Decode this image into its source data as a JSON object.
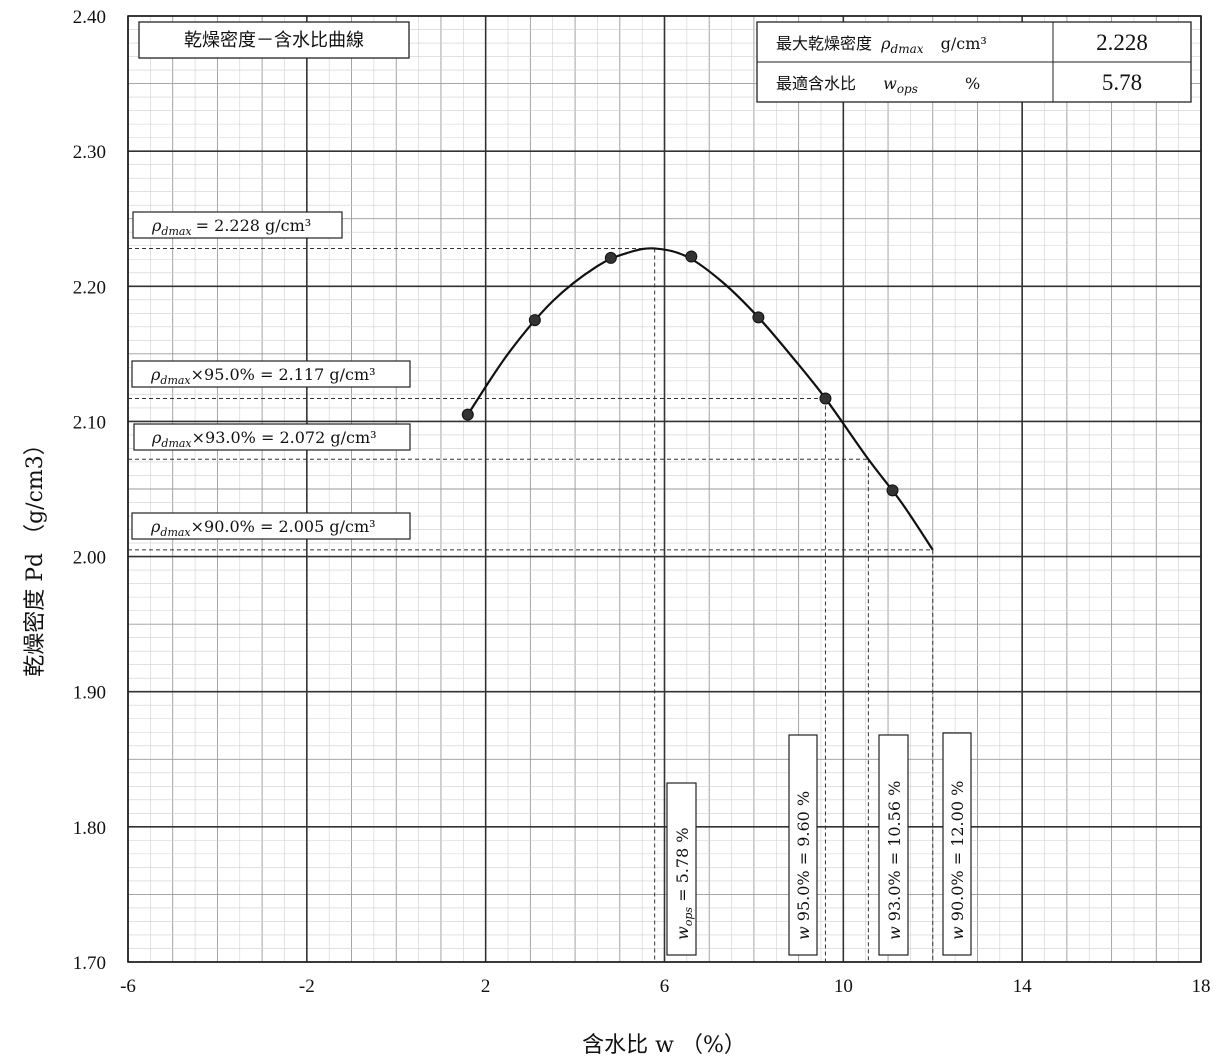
{
  "chart_data": {
    "type": "scatter",
    "title": "乾燥密度－含水比曲線",
    "xlabel": "含水比 w （%）",
    "ylabel": "乾燥密度 Pd （g/cm3）",
    "xlim": [
      -6,
      18
    ],
    "ylim": [
      1.7,
      2.4
    ],
    "xticks": [
      "-6",
      "-2",
      "2",
      "6",
      "10",
      "14",
      "18"
    ],
    "yticks": [
      "1.70",
      "1.80",
      "1.90",
      "2.00",
      "2.10",
      "2.20",
      "2.30",
      "2.40"
    ],
    "grid": true,
    "series": [
      {
        "points": [
          {
            "x": 1.6,
            "y": 2.105
          },
          {
            "x": 3.1,
            "y": 2.175
          },
          {
            "x": 4.8,
            "y": 2.221
          },
          {
            "x": 6.6,
            "y": 2.222
          },
          {
            "x": 8.1,
            "y": 2.177
          },
          {
            "x": 9.6,
            "y": 2.117
          },
          {
            "x": 11.1,
            "y": 2.049
          }
        ]
      }
    ],
    "curve": {
      "x": [
        1.6,
        2.5,
        3.5,
        4.5,
        5.2,
        5.78,
        6.5,
        7.3,
        8.1,
        8.9,
        9.6,
        10.56,
        11.3,
        12.0
      ],
      "y": [
        2.105,
        2.15,
        2.189,
        2.215,
        2.225,
        2.228,
        2.222,
        2.203,
        2.177,
        2.146,
        2.117,
        2.072,
        2.04,
        2.005
      ]
    },
    "reference_lines": [
      {
        "y": 2.228,
        "x": 5.78
      },
      {
        "y": 2.117,
        "x": 9.6
      },
      {
        "y": 2.072,
        "x": 10.56
      },
      {
        "y": 2.005,
        "x": 12.0
      }
    ]
  },
  "results_table": {
    "row1": {
      "label": "最大乾燥密度",
      "sym_main": "ρ",
      "sym_sub": "dmax",
      "unit": "g/cm³",
      "value": "2.228"
    },
    "row2": {
      "label": "最適含水比",
      "sym_main": "w",
      "sym_sub": "ops",
      "unit": "%",
      "value": "5.78"
    }
  },
  "annotations": {
    "y": [
      {
        "sym_main": "ρ",
        "sym_sub": "dmax",
        "text": "= 2.228 g/cm³"
      },
      {
        "sym_main": "ρ",
        "sym_sub": "dmax",
        "text": "×95.0% = 2.117 g/cm³"
      },
      {
        "sym_main": "ρ",
        "sym_sub": "dmax",
        "text": "×93.0% = 2.072 g/cm³"
      },
      {
        "sym_main": "ρ",
        "sym_sub": "dmax",
        "text": "×90.0% = 2.005 g/cm³"
      }
    ],
    "x": [
      {
        "sym_main": "w",
        "sym_sub": "ops",
        "text": " =  5.78 %"
      },
      {
        "sym_main": "w",
        "sym_sub": "",
        "text": " 95.0% =   9.60 %"
      },
      {
        "sym_main": "w",
        "sym_sub": "",
        "text": " 93.0% = 10.56 %"
      },
      {
        "sym_main": "w",
        "sym_sub": "",
        "text": " 90.0% = 12.00 %"
      }
    ]
  }
}
